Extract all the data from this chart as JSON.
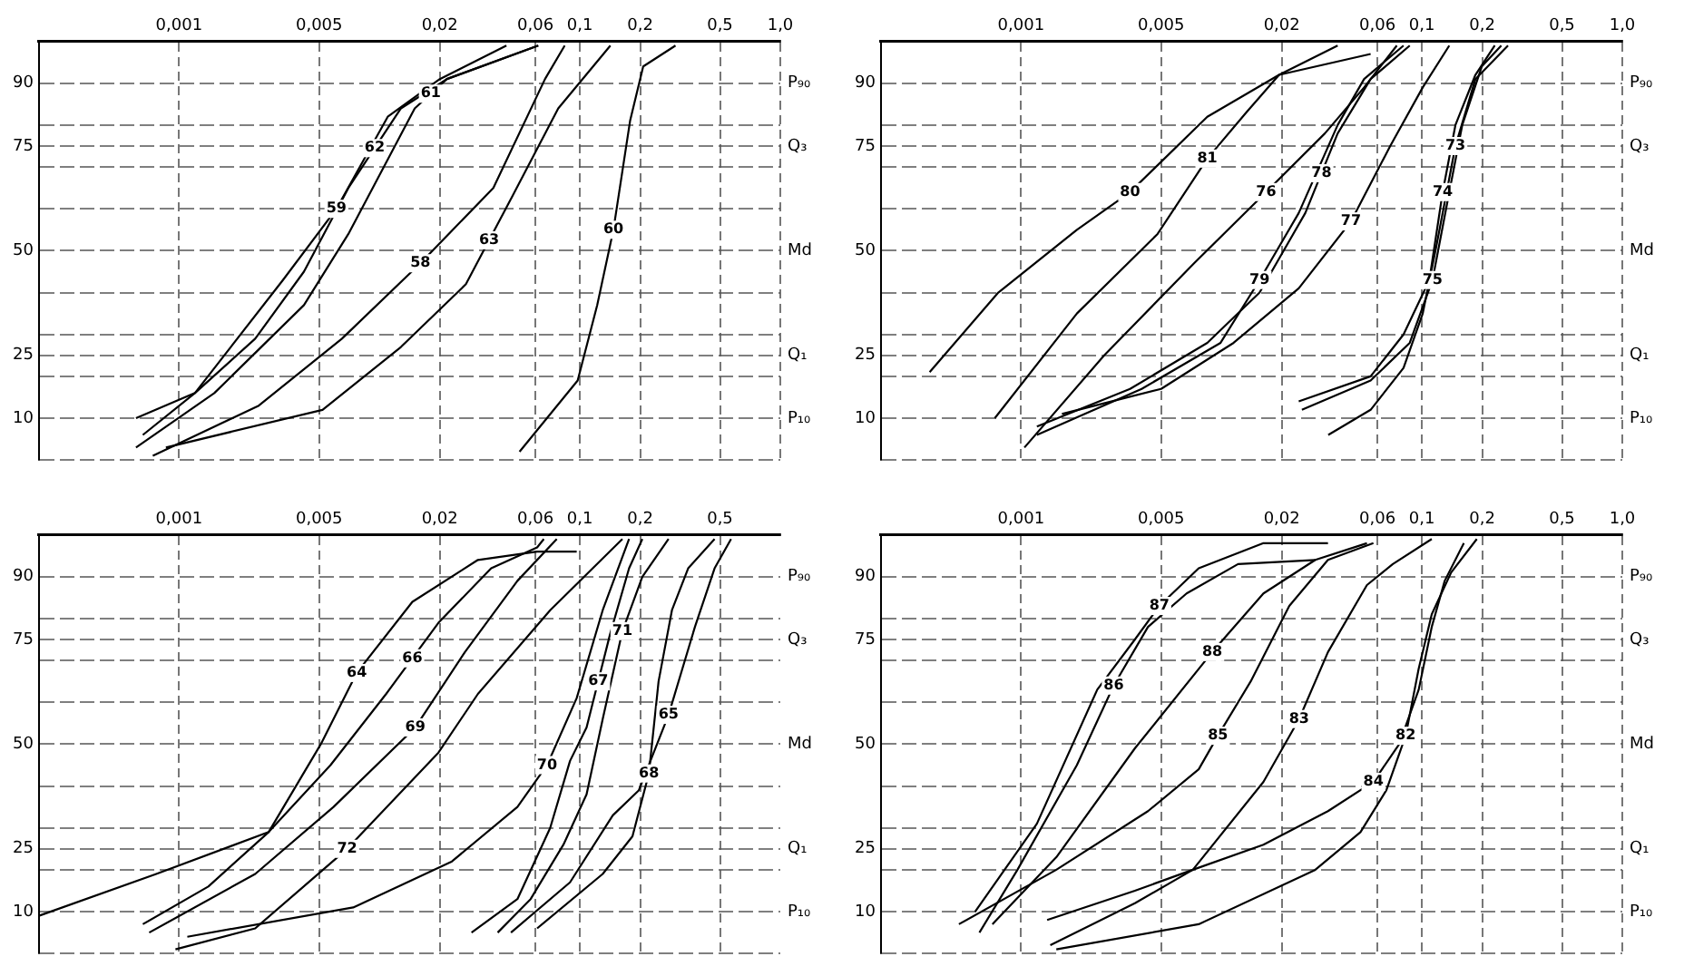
{
  "chart_data": [
    {
      "type": "line",
      "log": "x",
      "grid": true,
      "legend": false,
      "marker": "none",
      "line_style": "solid",
      "xlim": [
        0.0002,
        1
      ],
      "xticks": [
        {
          "value": 0.001,
          "label": "0,001"
        },
        {
          "value": 0.005,
          "label": "0,005"
        },
        {
          "value": 0.02,
          "label": "0,02"
        },
        {
          "value": 0.06,
          "label": "0,06"
        },
        {
          "value": 0.1,
          "label": "0,1"
        },
        {
          "value": 0.2,
          "label": "0,2"
        },
        {
          "value": 0.5,
          "label": "0,5"
        },
        {
          "value": 1,
          "label": "1,0"
        }
      ],
      "ylim": [
        0,
        100
      ],
      "yticks": [
        {
          "value": 0,
          "label": null
        },
        10,
        {
          "value": 20,
          "label": null
        },
        25,
        {
          "value": 30,
          "label": null
        },
        {
          "value": 40,
          "label": null
        },
        50,
        {
          "value": 60,
          "label": null
        },
        {
          "value": 70,
          "label": null
        },
        75,
        {
          "value": 80,
          "label": null
        },
        90
      ],
      "annotations": [
        "P₁₀",
        "Q₁",
        "Md",
        "Q₃",
        "P₉₀"
      ],
      "series": [
        {
          "name": "59",
          "color": "#000000",
          "x": [
            0.00061,
            0.0012,
            0.0033,
            0.0061,
            0.011,
            0.02,
            0.043
          ],
          "values": [
            10,
            16,
            43,
            60,
            82,
            91,
            99
          ]
        },
        {
          "name": "62",
          "color": "#000000",
          "x": [
            0.00066,
            0.0012,
            0.0024,
            0.0042,
            0.007,
            0.0128,
            0.0217,
            0.062
          ],
          "values": [
            6,
            16,
            29,
            45,
            65,
            84,
            91,
            99
          ]
        },
        {
          "name": "61",
          "color": "#000000",
          "x": [
            0.00061,
            0.0015,
            0.0042,
            0.007,
            0.0095,
            0.015,
            0.0217,
            0.062
          ],
          "values": [
            3,
            16,
            37,
            54,
            66,
            84,
            91,
            99
          ]
        },
        {
          "name": "58",
          "color": "#000000",
          "x": [
            0.00074,
            0.0025,
            0.0065,
            0.016,
            0.037,
            0.067,
            0.084
          ],
          "values": [
            1,
            13,
            29,
            47,
            65,
            91,
            99
          ]
        },
        {
          "name": "63",
          "color": "#000000",
          "x": [
            0.00086,
            0.0052,
            0.0128,
            0.027,
            0.046,
            0.078,
            0.142
          ],
          "values": [
            3,
            12,
            27,
            42,
            63,
            84,
            99
          ]
        },
        {
          "name": "60",
          "color": "#000000",
          "x": [
            0.05,
            0.0975,
            0.122,
            0.147,
            0.178,
            0.207,
            0.3
          ],
          "values": [
            2,
            19,
            37,
            55,
            81,
            94,
            99
          ]
        }
      ]
    },
    {
      "type": "line",
      "log": "x",
      "grid": true,
      "legend": false,
      "marker": "none",
      "line_style": "solid",
      "xlim": [
        0.0002,
        1
      ],
      "xticks": [
        {
          "value": 0.001,
          "label": "0,001"
        },
        {
          "value": 0.005,
          "label": "0,005"
        },
        {
          "value": 0.02,
          "label": "0,02"
        },
        {
          "value": 0.06,
          "label": "0,06"
        },
        {
          "value": 0.1,
          "label": "0,1"
        },
        {
          "value": 0.2,
          "label": "0,2"
        },
        {
          "value": 0.5,
          "label": "0,5"
        },
        {
          "value": 1,
          "label": "1,0"
        }
      ],
      "ylim": [
        0,
        100
      ],
      "yticks": [
        {
          "value": 0,
          "label": null
        },
        10,
        {
          "value": 20,
          "label": null
        },
        25,
        {
          "value": 30,
          "label": null
        },
        {
          "value": 40,
          "label": null
        },
        50,
        {
          "value": 60,
          "label": null
        },
        {
          "value": 70,
          "label": null
        },
        75,
        {
          "value": 80,
          "label": null
        },
        90
      ],
      "annotations": [
        "P₁₀",
        "Q₁",
        "Md",
        "Q₃",
        "P₉₀"
      ],
      "series": [
        {
          "name": "80",
          "color": "#000000",
          "x": [
            0.00035,
            0.00077,
            0.0019,
            0.0035,
            0.0085,
            0.0194,
            0.0555
          ],
          "values": [
            21,
            40,
            55,
            64,
            82,
            92,
            97
          ]
        },
        {
          "name": "81",
          "color": "#000000",
          "x": [
            0.00074,
            0.0019,
            0.0048,
            0.0085,
            0.0133,
            0.0194,
            0.038
          ],
          "values": [
            10,
            35,
            54,
            72,
            83,
            92,
            99
          ]
        },
        {
          "name": "76",
          "color": "#000000",
          "x": [
            0.00104,
            0.0026,
            0.0073,
            0.0167,
            0.0328,
            0.0515,
            0.075
          ],
          "values": [
            3,
            25,
            47,
            64,
            78,
            89,
            99
          ]
        },
        {
          "name": "79",
          "color": "#000000",
          "x": [
            0.0012,
            0.004,
            0.0099,
            0.0155,
            0.0243,
            0.038,
            0.0515,
            0.081
          ],
          "values": [
            6,
            17,
            28,
            43,
            59,
            80,
            91,
            99
          ]
        },
        {
          "name": "78",
          "color": "#000000",
          "x": [
            0.0012,
            0.0035,
            0.0085,
            0.0155,
            0.0262,
            0.038,
            0.0555,
            0.087
          ],
          "values": [
            8,
            17,
            28,
            40,
            59,
            78,
            91,
            99
          ]
        },
        {
          "name": "77",
          "color": "#000000",
          "x": [
            0.0016,
            0.005,
            0.0115,
            0.0243,
            0.0443,
            0.0695,
            0.101,
            0.137
          ],
          "values": [
            11,
            17,
            28,
            41,
            57,
            75,
            89,
            99
          ]
        },
        {
          "name": "74",
          "color": "#000000",
          "x": [
            0.0243,
            0.0555,
            0.081,
            0.109,
            0.127,
            0.147,
            0.185,
            0.231
          ],
          "values": [
            14,
            20,
            30,
            43,
            64,
            80,
            92,
            99
          ]
        },
        {
          "name": "75",
          "color": "#000000",
          "x": [
            0.0252,
            0.0555,
            0.087,
            0.113,
            0.137,
            0.159,
            0.199,
            0.249
          ],
          "values": [
            12,
            19,
            28,
            43,
            64,
            80,
            94,
            99
          ]
        },
        {
          "name": "73",
          "color": "#000000",
          "x": [
            0.0341,
            0.0555,
            0.081,
            0.101,
            0.118,
            0.147,
            0.185,
            0.269
          ],
          "values": [
            6,
            12,
            22,
            35,
            51,
            75,
            91,
            99
          ]
        }
      ]
    },
    {
      "type": "line",
      "log": "x",
      "grid": true,
      "legend": false,
      "marker": "none",
      "line_style": "solid",
      "xlim": [
        0.0002,
        1
      ],
      "xticks": [
        {
          "value": 0.001,
          "label": "0,001"
        },
        {
          "value": 0.005,
          "label": "0,005"
        },
        {
          "value": 0.02,
          "label": "0,02"
        },
        {
          "value": 0.06,
          "label": "0,06"
        },
        {
          "value": 0.1,
          "label": "0,1"
        },
        {
          "value": 0.2,
          "label": "0,2"
        },
        {
          "value": 0.5,
          "label": "0,5"
        }
      ],
      "ylim": [
        0,
        100
      ],
      "yticks": [
        {
          "value": 0,
          "label": null
        },
        10,
        {
          "value": 20,
          "label": null
        },
        25,
        {
          "value": 30,
          "label": null
        },
        {
          "value": 40,
          "label": null
        },
        50,
        {
          "value": 60,
          "label": null
        },
        {
          "value": 70,
          "label": null
        },
        75,
        {
          "value": 80,
          "label": null
        },
        90
      ],
      "annotations": [
        "P₁₀",
        "Q₁",
        "Md",
        "Q₃",
        "P₉₀"
      ],
      "series": [
        {
          "name": "64",
          "color": "#000000",
          "x": [
            0.00066,
            0.0014,
            0.0028,
            0.0051,
            0.0077,
            0.0146,
            0.031,
            0.0612,
            0.0964
          ],
          "values": [
            7,
            16,
            29,
            50,
            67,
            84,
            94,
            96,
            96
          ]
        },
        {
          "name": "66",
          "color": "#000000",
          "x": [
            0.0002,
            0.00077,
            0.0028,
            0.0057,
            0.0108,
            0.0197,
            0.0361,
            0.0612,
            0.0661
          ],
          "values": [
            9,
            19,
            29,
            45,
            62,
            79,
            92,
            97,
            99
          ]
        },
        {
          "name": "69",
          "color": "#000000",
          "x": [
            0.00071,
            0.0024,
            0.0059,
            0.0151,
            0.0267,
            0.0488,
            0.0767
          ],
          "values": [
            5,
            19,
            35,
            54,
            72,
            89,
            99
          ]
        },
        {
          "name": "72",
          "color": "#000000",
          "x": [
            0.00096,
            0.0024,
            0.0069,
            0.0197,
            0.031,
            0.0711,
            0.163
          ],
          "values": [
            1,
            6,
            25,
            48,
            62,
            82,
            99
          ]
        },
        {
          "name": "70",
          "color": "#000000",
          "x": [
            0.0011,
            0.0074,
            0.023,
            0.0488,
            0.0686,
            0.0964,
            0.13,
            0.176
          ],
          "values": [
            4,
            11,
            22,
            35,
            45,
            61,
            82,
            99
          ]
        },
        {
          "name": "67",
          "color": "#000000",
          "x": [
            0.0288,
            0.0488,
            0.0711,
            0.0893,
            0.108,
            0.141,
            0.176,
            0.205
          ],
          "values": [
            5,
            13,
            30,
            46,
            54,
            76,
            92,
            99
          ]
        },
        {
          "name": "71",
          "color": "#000000",
          "x": [
            0.0389,
            0.0568,
            0.0828,
            0.108,
            0.13,
            0.163,
            0.205,
            0.277
          ],
          "values": [
            5,
            13,
            26,
            38,
            56,
            77,
            90,
            99
          ]
        },
        {
          "name": "65",
          "color": "#000000",
          "x": [
            0.0453,
            0.0893,
            0.146,
            0.197,
            0.277,
            0.375,
            0.47,
            0.568
          ],
          "values": [
            5,
            17,
            33,
            39,
            57,
            78,
            92,
            99
          ]
        },
        {
          "name": "68",
          "color": "#000000",
          "x": [
            0.0612,
            0.13,
            0.183,
            0.221,
            0.247,
            0.288,
            0.347,
            0.47
          ],
          "values": [
            6,
            19,
            28,
            43,
            65,
            82,
            92,
            99
          ]
        }
      ]
    },
    {
      "type": "line",
      "log": "x",
      "grid": true,
      "legend": false,
      "marker": "none",
      "line_style": "solid",
      "xlim": [
        0.0002,
        1
      ],
      "xticks": [
        {
          "value": 0.001,
          "label": "0,001"
        },
        {
          "value": 0.005,
          "label": "0,005"
        },
        {
          "value": 0.02,
          "label": "0,02"
        },
        {
          "value": 0.06,
          "label": "0,06"
        },
        {
          "value": 0.1,
          "label": "0,1"
        },
        {
          "value": 0.2,
          "label": "0,2"
        },
        {
          "value": 0.5,
          "label": "0,5"
        },
        {
          "value": 1,
          "label": "1,0"
        }
      ],
      "ylim": [
        0,
        100
      ],
      "yticks": [
        {
          "value": 0,
          "label": null
        },
        10,
        {
          "value": 20,
          "label": null
        },
        25,
        {
          "value": 30,
          "label": null
        },
        {
          "value": 40,
          "label": null
        },
        50,
        {
          "value": 60,
          "label": null
        },
        {
          "value": 70,
          "label": null
        },
        75,
        {
          "value": 80,
          "label": null
        },
        90
      ],
      "annotations": [
        "P₁₀",
        "Q₁",
        "Md",
        "Q₃",
        "P₉₀"
      ],
      "series": [
        {
          "name": "87",
          "color": "#000000",
          "x": [
            0.00059,
            0.0012,
            0.0024,
            0.0037,
            0.0049,
            0.0077,
            0.0162,
            0.034
          ],
          "values": [
            10,
            31,
            63,
            75,
            83,
            92,
            98,
            98
          ]
        },
        {
          "name": "86",
          "color": "#000000",
          "x": [
            0.00062,
            0.00096,
            0.0019,
            0.0029,
            0.0043,
            0.0067,
            0.0121,
            0.0294
          ],
          "values": [
            5,
            20,
            45,
            64,
            78,
            86,
            93,
            94
          ]
        },
        {
          "name": "88",
          "color": "#000000",
          "x": [
            0.00072,
            0.0015,
            0.0037,
            0.009,
            0.0162,
            0.0294,
            0.0532
          ],
          "values": [
            7,
            23,
            49,
            72,
            86,
            94,
            98
          ]
        },
        {
          "name": "85",
          "color": "#000000",
          "x": [
            0.00049,
            0.0015,
            0.0043,
            0.0077,
            0.0096,
            0.014,
            0.0218,
            0.034,
            0.0573
          ],
          "values": [
            7,
            20,
            34,
            44,
            52,
            65,
            83,
            94,
            98
          ]
        },
        {
          "name": "83",
          "color": "#000000",
          "x": [
            0.0014,
            0.0037,
            0.0072,
            0.0162,
            0.0244,
            0.034,
            0.0532,
            0.0716,
            0.112
          ],
          "values": [
            2,
            12,
            20,
            41,
            56,
            72,
            88,
            93,
            99
          ]
        },
        {
          "name": "84",
          "color": "#000000",
          "x": [
            0.00135,
            0.0037,
            0.0072,
            0.0162,
            0.034,
            0.0573,
            0.0771,
            0.0964,
            0.112,
            0.13,
            0.162
          ],
          "values": [
            8,
            15,
            20,
            26,
            34,
            41,
            50,
            63,
            78,
            89,
            98
          ]
        },
        {
          "name": "82",
          "color": "#000000",
          "x": [
            0.0015,
            0.0077,
            0.0294,
            0.0494,
            0.0665,
            0.083,
            0.0964,
            0.112,
            0.14,
            0.188
          ],
          "values": [
            1,
            7,
            20,
            29,
            39,
            52,
            68,
            81,
            91,
            99
          ]
        }
      ]
    }
  ]
}
